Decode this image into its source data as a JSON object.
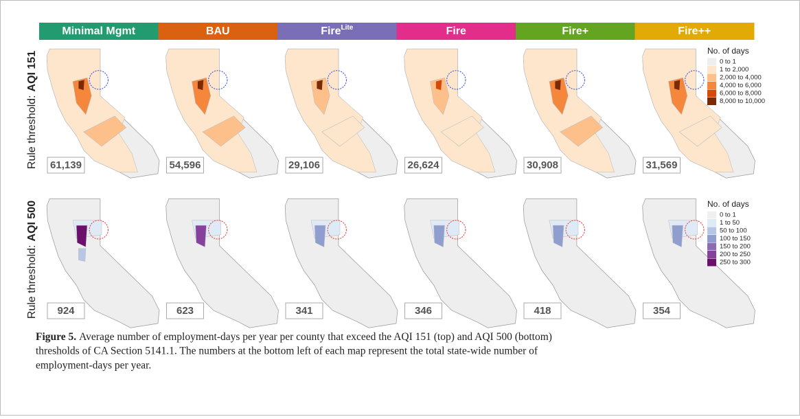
{
  "figure": {
    "scenarios": [
      {
        "name": "Minimal Mgmt",
        "color": "#239b70"
      },
      {
        "name": "BAU",
        "color": "#d9610f"
      },
      {
        "name": "Fire",
        "superscript": "Lite",
        "color": "#7a6fb6"
      },
      {
        "name": "Fire",
        "color": "#e22d8b"
      },
      {
        "name": "Fire+",
        "color": "#63a420"
      },
      {
        "name": "Fire++",
        "color": "#e2aa05"
      }
    ],
    "rows": [
      {
        "label": "Rule threshold:",
        "threshold": "AQI 151",
        "totals": [
          "61,139",
          "54,596",
          "29,106",
          "26,624",
          "30,908",
          "31,569"
        ],
        "legend": {
          "title": "No. of days",
          "items": [
            {
              "label": "0 to 1",
              "color": "#eeeeee"
            },
            {
              "label": "1 to 2,000",
              "color": "#fde6cc"
            },
            {
              "label": "2,000 to 4,000",
              "color": "#fdc08a"
            },
            {
              "label": "4,000 to 6,000",
              "color": "#f5873d"
            },
            {
              "label": "6,000 to 8,000",
              "color": "#d74a05"
            },
            {
              "label": "8,000 to 10,000",
              "color": "#7b2a06"
            }
          ]
        }
      },
      {
        "label": "Rule threshold:",
        "threshold": "AQI 500",
        "totals": [
          "924",
          "623",
          "341",
          "346",
          "418",
          "354"
        ],
        "legend": {
          "title": "No. of days",
          "items": [
            {
              "label": "0 to 1",
              "color": "#f0f0f0"
            },
            {
              "label": "1 to 50",
              "color": "#dfeaf7"
            },
            {
              "label": "50 to 100",
              "color": "#b7c6e4"
            },
            {
              "label": "100 to 150",
              "color": "#909dcf"
            },
            {
              "label": "150 to 200",
              "color": "#8c6bb1"
            },
            {
              "label": "200 to 250",
              "color": "#86419c"
            },
            {
              "label": "250 to 300",
              "color": "#6a0f6b"
            }
          ]
        }
      }
    ],
    "caption": {
      "label": "Figure 5.",
      "text_lines": [
        "Average number of employment-days per year per county that exceed the AQI 151 (top) and AQI 500 (bottom)",
        "thresholds of CA Section 5141.1. The numbers at the bottom left of each map represent the total state-wide number of",
        "employment-days per year."
      ]
    }
  }
}
